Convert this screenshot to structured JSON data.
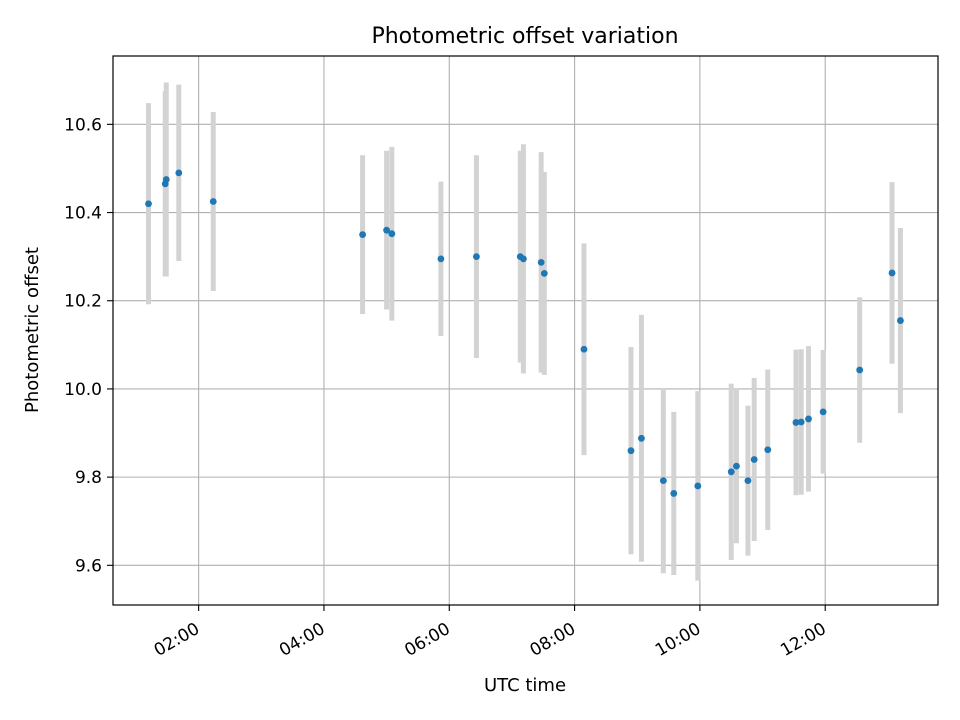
{
  "chart_data": {
    "type": "scatter",
    "title": "Photometric offset variation",
    "xlabel": "UTC time",
    "ylabel": "Photometric offset",
    "x_axis_type": "time",
    "xlim": [
      "00:38",
      "13:48"
    ],
    "ylim": [
      9.51,
      10.755
    ],
    "grid": true,
    "legend": "none",
    "x_ticks": [
      "02:00",
      "04:00",
      "06:00",
      "08:00",
      "10:00",
      "12:00"
    ],
    "y_ticks": [
      9.6,
      9.8,
      10.0,
      10.2,
      10.4,
      10.6
    ],
    "y_tick_labels": [
      "9.6",
      "9.8",
      "10.0",
      "10.2",
      "10.4",
      "10.6"
    ],
    "colors": {
      "point": "#1f77b4",
      "errorbar": "#d3d3d3",
      "grid": "#b0b0b0"
    },
    "series": [
      {
        "x": [
          "01:12",
          "01:28",
          "01:29",
          "01:41",
          "02:14",
          "04:37",
          "05:00",
          "05:05",
          "05:52",
          "06:26",
          "07:08",
          "07:11",
          "07:28",
          "07:31",
          "08:09",
          "08:54",
          "09:04",
          "09:25",
          "09:35",
          "09:58",
          "10:30",
          "10:35",
          "10:46",
          "10:52",
          "11:05",
          "11:32",
          "11:37",
          "11:44",
          "11:58",
          "12:33",
          "13:04",
          "13:12"
        ],
        "y": [
          10.42,
          10.465,
          10.475,
          10.49,
          10.425,
          10.35,
          10.36,
          10.352,
          10.295,
          10.3,
          10.3,
          10.295,
          10.287,
          10.262,
          10.09,
          9.86,
          9.888,
          9.792,
          9.763,
          9.78,
          9.812,
          9.825,
          9.792,
          9.84,
          9.862,
          9.924,
          9.925,
          9.932,
          9.948,
          10.043,
          10.263,
          10.155
        ],
        "yerr": [
          0.228,
          0.21,
          0.22,
          0.2,
          0.203,
          0.18,
          0.18,
          0.197,
          0.175,
          0.23,
          0.24,
          0.26,
          0.25,
          0.23,
          0.24,
          0.235,
          0.28,
          0.21,
          0.185,
          0.215,
          0.2,
          0.175,
          0.17,
          0.185,
          0.182,
          0.165,
          0.165,
          0.165,
          0.14,
          0.165,
          0.206,
          0.21
        ]
      }
    ]
  }
}
